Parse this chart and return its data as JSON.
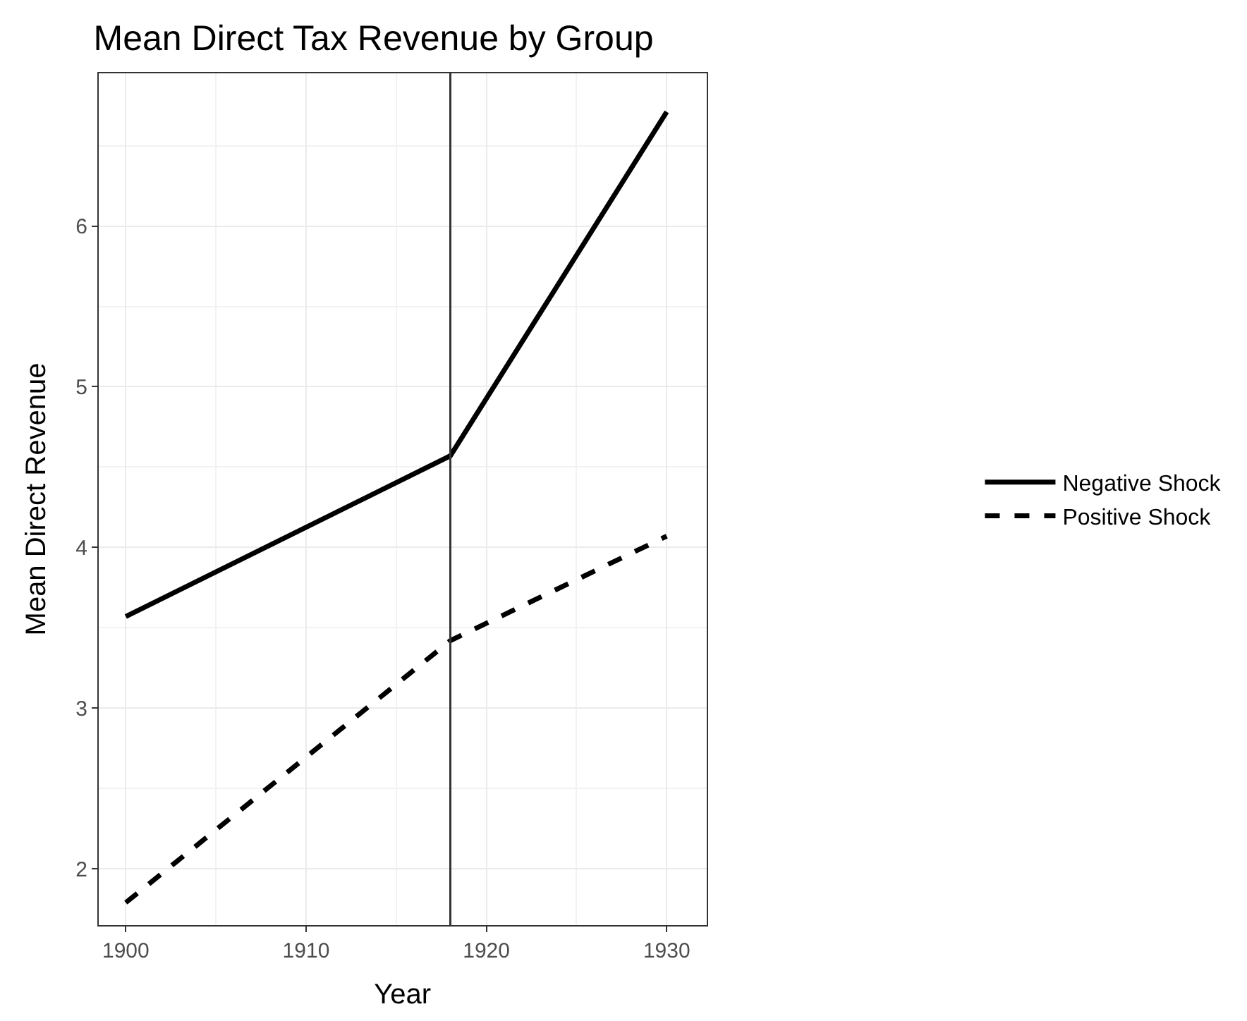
{
  "chart_data": {
    "type": "line",
    "title": "Mean Direct Tax Revenue by Group",
    "xlabel": "Year",
    "ylabel": "Mean Direct Revenue",
    "x": [
      1900,
      1918,
      1930
    ],
    "series": [
      {
        "name": "Negative Shock",
        "color": "#000000",
        "values": [
          3.57,
          4.57,
          6.71
        ],
        "line_style": "solid"
      },
      {
        "name": "Positive Shock",
        "color": "#000000",
        "values": [
          1.79,
          3.42,
          4.07
        ],
        "line_style": "dashed"
      }
    ],
    "xlim": [
      1898.5,
      1932.2
    ],
    "xticks": [
      1900,
      1910,
      1920,
      1930
    ],
    "ylim": [
      1.65,
      6.95
    ],
    "yticks": [
      2,
      3,
      4,
      5,
      6
    ],
    "ref_lines": [
      {
        "axis": "x",
        "value": 1918,
        "color": "#333333"
      }
    ],
    "grid": true,
    "legend": "right",
    "marker": "none"
  }
}
